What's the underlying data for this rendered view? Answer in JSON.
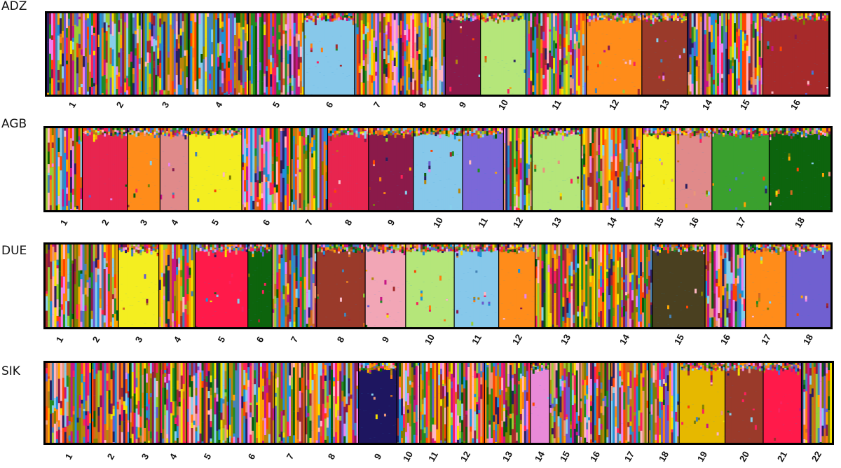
{
  "chart_data": [
    {
      "type": "bar",
      "title": "ADZ",
      "categories": [
        "1",
        "2",
        "3",
        "4",
        "5",
        "6",
        "7",
        "8",
        "9",
        "10",
        "11",
        "12",
        "13",
        "14",
        "15",
        "16"
      ],
      "group_widths": [
        5,
        4.5,
        4.5,
        6,
        5.5,
        5,
        4.5,
        4.5,
        3.5,
        4.5,
        6,
        5.5,
        4.5,
        4,
        3.5,
        6.5
      ],
      "group_dominant": [
        null,
        null,
        null,
        null,
        null,
        "lightblue",
        null,
        null,
        "maroon",
        "lightgreen",
        null,
        "orange",
        "brown",
        null,
        null,
        "darkred"
      ],
      "stacked": true,
      "ylim": [
        0,
        1
      ]
    },
    {
      "type": "bar",
      "title": "AGB",
      "categories": [
        "1",
        "2",
        "3",
        "4",
        "5",
        "6",
        "7",
        "8",
        "9",
        "10",
        "11",
        "12",
        "13",
        "14",
        "15",
        "16",
        "17",
        "18"
      ],
      "group_widths": [
        4.5,
        5.5,
        4,
        3.5,
        6.5,
        6,
        4.5,
        5,
        5.5,
        6,
        5,
        3.5,
        6,
        7.5,
        4,
        4.5,
        7,
        7.5
      ],
      "group_dominant": [
        null,
        "crimson",
        "orange",
        "salmon",
        "yellow",
        null,
        null,
        "crimson",
        "maroon",
        "lightblue",
        "mediumpurple",
        null,
        "lightgreen",
        null,
        "yellow",
        "salmon",
        "green",
        "darkgreen"
      ],
      "stacked": true,
      "ylim": [
        0,
        1
      ]
    },
    {
      "type": "bar",
      "title": "DUE",
      "categories": [
        "1",
        "2",
        "3",
        "4",
        "5",
        "6",
        "7",
        "8",
        "9",
        "10",
        "11",
        "12",
        "13",
        "14",
        "15",
        "16",
        "17",
        "18"
      ],
      "group_widths": [
        3.5,
        5.5,
        5,
        4.5,
        6.5,
        3,
        5.5,
        6,
        5,
        6,
        5.5,
        4.5,
        7.5,
        7,
        6.5,
        5,
        5,
        5.5
      ],
      "group_dominant": [
        null,
        null,
        "yellow",
        null,
        "red",
        "darkgreen",
        null,
        "brown",
        "pink",
        "lightgreen",
        "lightblue",
        "orange",
        null,
        null,
        "darkolive",
        null,
        "orange",
        "slateblue"
      ],
      "stacked": true,
      "ylim": [
        0,
        1
      ]
    },
    {
      "type": "bar",
      "title": "SIK",
      "categories": [
        "1",
        "2",
        "3",
        "4",
        "5",
        "6",
        "7",
        "8",
        "9",
        "10",
        "11",
        "12",
        "13",
        "14",
        "15",
        "16",
        "17",
        "18",
        "19",
        "20",
        "21",
        "22"
      ],
      "group_widths": [
        6,
        5,
        4,
        3.5,
        5.5,
        6,
        4,
        7,
        5,
        3,
        3.5,
        5,
        6,
        2.5,
        4,
        4,
        5,
        4,
        6,
        5,
        5,
        4
      ],
      "group_dominant": [
        null,
        null,
        null,
        null,
        null,
        null,
        null,
        null,
        "navy",
        null,
        null,
        null,
        null,
        "violet",
        null,
        null,
        null,
        null,
        "gold",
        "brown",
        "red",
        null
      ],
      "stacked": true,
      "ylim": [
        0,
        1
      ]
    }
  ],
  "palette": [
    "#1e90d8",
    "#ff7f0e",
    "#ff1f5a",
    "#a52a2a",
    "#8b1a4a",
    "#f5e000",
    "#9acd32",
    "#228b22",
    "#0a5c0a",
    "#6a5acd",
    "#87ceeb",
    "#ffb6c1",
    "#e9967a",
    "#b8860b",
    "#2b1e5e",
    "#d2691e",
    "#c71585",
    "#808000",
    "#ffa500",
    "#ee82ee",
    "#4682b4",
    "#ff4500"
  ],
  "named_colors": {
    "lightblue": "#87c8ea",
    "maroon": "#8b1a4a",
    "lightgreen": "#b5e67a",
    "orange": "#ff8c1a",
    "brown": "#9a3a2a",
    "darkred": "#a72a2a",
    "crimson": "#e8254f",
    "salmon": "#e08a8a",
    "yellow": "#f4ee20",
    "mediumpurple": "#7b68d8",
    "green": "#3aa02e",
    "darkgreen": "#0d640d",
    "red": "#ff1a4a",
    "pink": "#f2a6b6",
    "darkolive": "#4a4020",
    "slateblue": "#7060d0",
    "navy": "#1e1660",
    "violet": "#e98ad8",
    "gold": "#e6b800"
  }
}
